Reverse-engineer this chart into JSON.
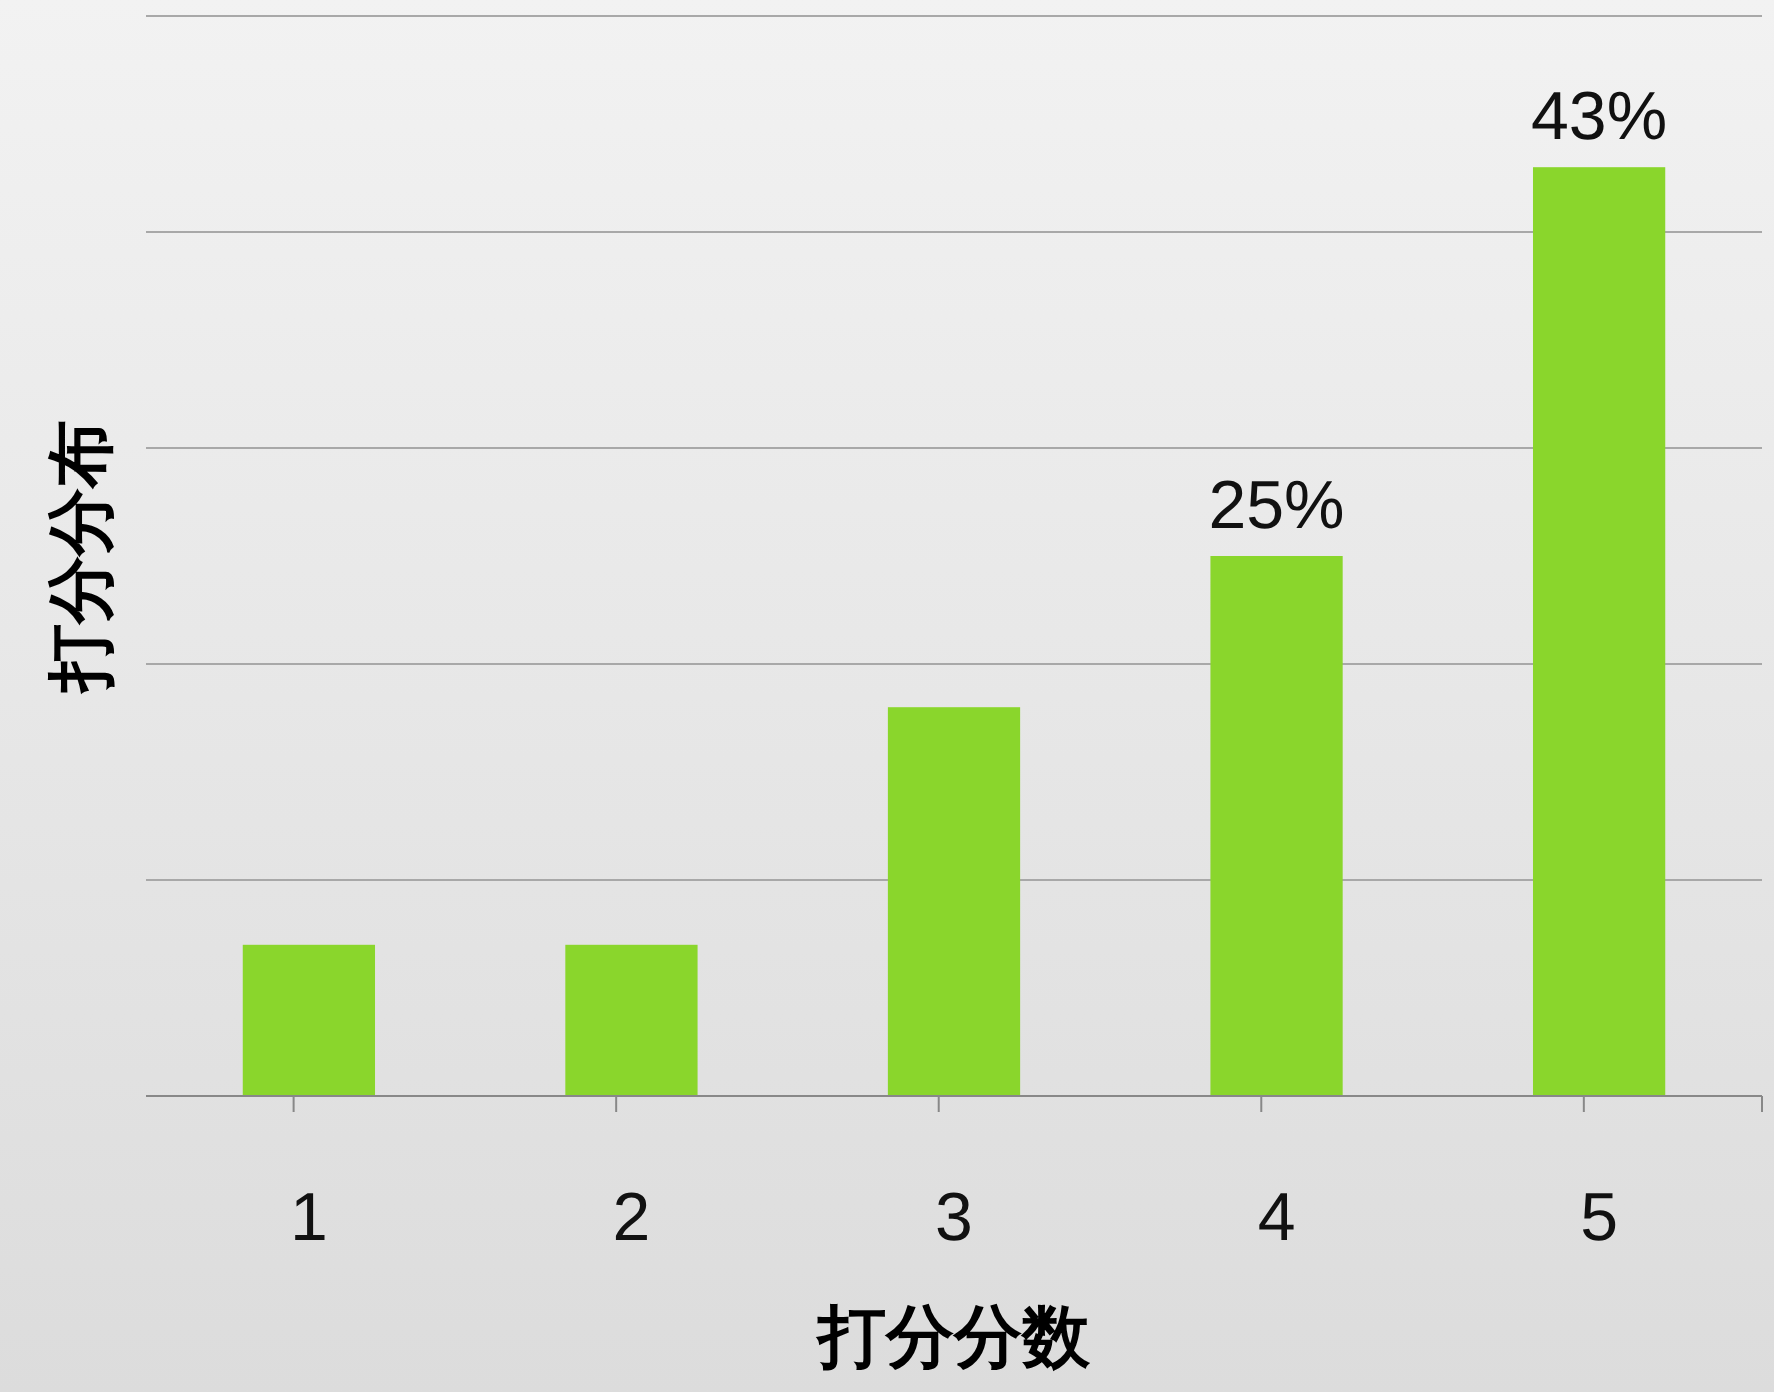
{
  "chart_data": {
    "type": "bar",
    "xlabel": "打分分数",
    "ylabel": "打分分布",
    "categories": [
      "1",
      "2",
      "3",
      "4",
      "5"
    ],
    "values": [
      7,
      7,
      18,
      25,
      43
    ],
    "value_labels": [
      null,
      null,
      null,
      "25%",
      "43%"
    ],
    "color": "#8ad62c",
    "ylim": [
      0,
      50
    ],
    "yticks": [
      {
        "value": 0,
        "label": null
      },
      {
        "value": 10,
        "label": null
      },
      {
        "value": 20,
        "label": null
      },
      {
        "value": 30,
        "label": null
      },
      {
        "value": 40,
        "label": null
      },
      {
        "value": 50,
        "label": null
      }
    ],
    "grid": "y",
    "tick_labels": "x"
  }
}
